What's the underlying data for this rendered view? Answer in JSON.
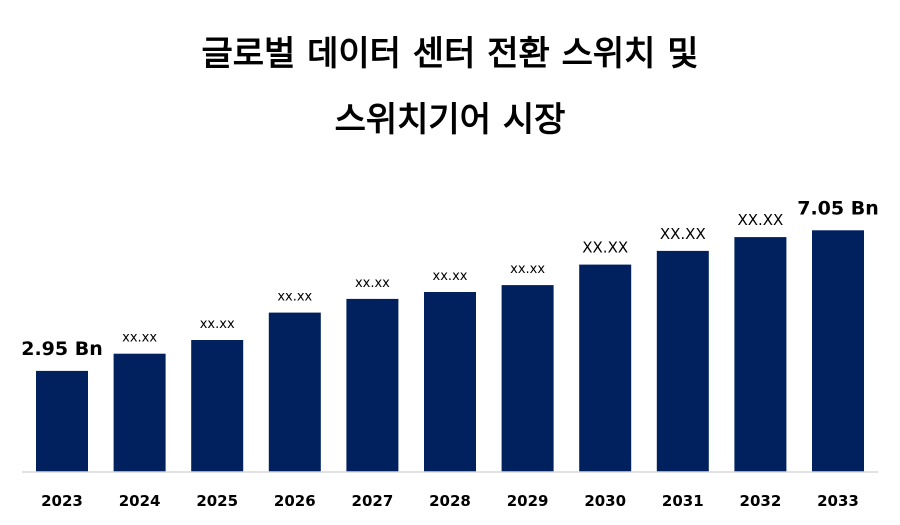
{
  "title": {
    "line1": "글로벌 데이터 센터 전환 스위치 및",
    "line2": "스위치기어 시장"
  },
  "colors": {
    "bar": "#01205E",
    "axis": "#d9d9d9",
    "text": "#000000"
  },
  "chart_data": {
    "type": "bar",
    "title": "글로벌 데이터 센터 전환 스위치 및 스위치기어 시장",
    "categories": [
      "2023",
      "2024",
      "2025",
      "2026",
      "2027",
      "2028",
      "2029",
      "2030",
      "2031",
      "2032",
      "2033"
    ],
    "values": [
      2.95,
      3.45,
      3.85,
      4.65,
      5.05,
      5.25,
      5.45,
      6.05,
      6.45,
      6.85,
      7.05
    ],
    "data_labels": [
      "2.95 Bn",
      "xx.xx",
      "xx.xx",
      "xx.xx",
      "xx.xx",
      "xx.xx",
      "xx.xx",
      "XX.XX",
      "XX.XX",
      "XX.XX",
      "7.05 Bn"
    ],
    "xlabel": "",
    "ylabel": "",
    "ylim": [
      0,
      7.7
    ],
    "grid": false,
    "legend": "none"
  }
}
